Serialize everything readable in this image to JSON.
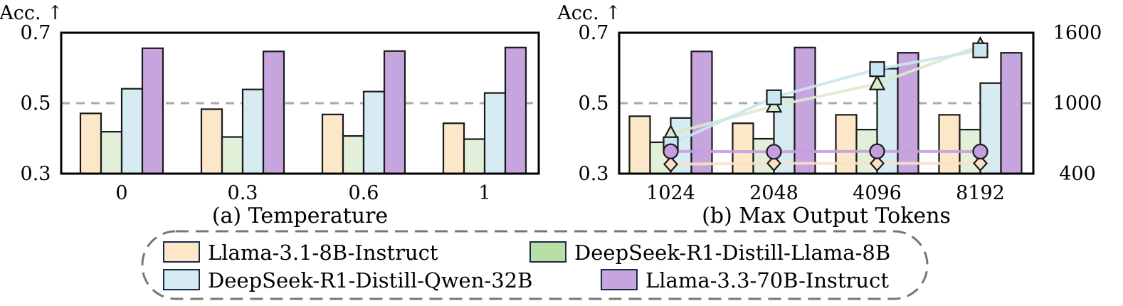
{
  "chart_data": [
    {
      "type": "bar",
      "ylabel": "Acc. ↑",
      "ylim": [
        0.3,
        0.7
      ],
      "yticks": [
        "0.3",
        "0.5",
        "0.7"
      ],
      "reference_line": 0.5,
      "categories": [
        "0",
        "0.3",
        "0.6",
        "1"
      ],
      "caption": "(a) Temperature",
      "series": [
        {
          "name": "Llama-3.1-8B-Instruct",
          "values": [
            0.471,
            0.483,
            0.468,
            0.443
          ]
        },
        {
          "name": "DeepSeek-R1-Distill-Llama-8B",
          "values": [
            0.419,
            0.404,
            0.407,
            0.398
          ]
        },
        {
          "name": "DeepSeek-R1-Distill-Qwen-32B",
          "values": [
            0.541,
            0.539,
            0.533,
            0.529
          ]
        },
        {
          "name": "Llama-3.3-70B-Instruct",
          "values": [
            0.656,
            0.647,
            0.648,
            0.658
          ]
        }
      ]
    },
    {
      "type": "bar",
      "ylabel": "Acc. ↑",
      "ylim": [
        0.3,
        0.7
      ],
      "yticks": [
        "0.3",
        "0.5",
        "0.7"
      ],
      "y2lim": [
        400,
        1600
      ],
      "y2ticks": [
        "400",
        "1000",
        "1600"
      ],
      "reference_line": 0.5,
      "categories": [
        "1024",
        "2048",
        "4096",
        "8192"
      ],
      "caption": "(b) Max Output Tokens",
      "series": [
        {
          "name": "Llama-3.1-8B-Instruct",
          "values": [
            0.463,
            0.443,
            0.467,
            0.467
          ]
        },
        {
          "name": "DeepSeek-R1-Distill-Llama-8B",
          "values": [
            0.389,
            0.399,
            0.425,
            0.425
          ]
        },
        {
          "name": "DeepSeek-R1-Distill-Qwen-32B",
          "values": [
            0.458,
            0.517,
            0.598,
            0.557
          ]
        },
        {
          "name": "Llama-3.3-70B-Instruct",
          "values": [
            0.647,
            0.658,
            0.643,
            0.643
          ]
        }
      ],
      "line_series": [
        {
          "name": "Llama-3.1-8B-Instruct",
          "marker": "diamond",
          "values": [
            480,
            488,
            487,
            488
          ]
        },
        {
          "name": "DeepSeek-R1-Distill-Llama-8B",
          "marker": "triangle",
          "values": [
            740,
            975,
            1165,
            1490
          ]
        },
        {
          "name": "DeepSeek-R1-Distill-Qwen-32B",
          "marker": "square",
          "values": [
            650,
            1050,
            1290,
            1450
          ]
        },
        {
          "name": "Llama-3.3-70B-Instruct",
          "marker": "circle",
          "values": [
            590,
            586,
            590,
            588
          ]
        }
      ]
    }
  ],
  "legend": {
    "items": [
      {
        "label": "Llama-3.1-8B-Instruct",
        "color": "#fde7c9"
      },
      {
        "label": "DeepSeek-R1-Distill-Llama-8B",
        "color": "#b8e0a4"
      },
      {
        "label": "DeepSeek-R1-Distill-Qwen-32B",
        "color": "#d6ecf2"
      },
      {
        "label": "Llama-3.3-70B-Instruct",
        "color": "#c6a4de"
      }
    ]
  },
  "colors": {
    "bars": [
      "#fde7c9",
      "#e2efd9",
      "#d6ecf2",
      "#c6a4de"
    ],
    "lines": [
      "#fde0c4",
      "#d9ebc9",
      "#c9e7f0",
      "#c59ee0"
    ],
    "reference_line": "#aaaaaa"
  }
}
